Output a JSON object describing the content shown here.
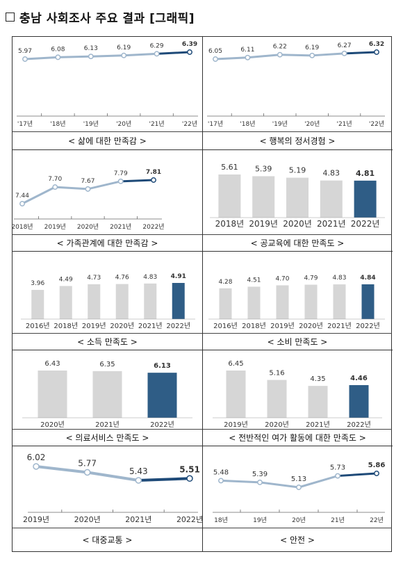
{
  "title": {
    "text": "충남 사회조사 주요 결과 [그래픽]",
    "checkbox_icon": "empty-square-icon"
  },
  "colors": {
    "light_line": "#9fb6cc",
    "dark_line": "#1e4a78",
    "bar_grey": "#d6d6d6",
    "bar_highlight": "#2f5d86",
    "marker_fill": "#ffffff"
  },
  "chart_data": [
    {
      "type": "line",
      "title": "< 삶에 대한 만족감 >",
      "categories": [
        "'17년",
        "'18년",
        "'19년",
        "'20년",
        "'21년",
        "'22년"
      ],
      "values": [
        5.97,
        6.08,
        6.13,
        6.19,
        6.29,
        6.39
      ],
      "value_labels": [
        "5.97",
        "6.08",
        "6.13",
        "6.19",
        "6.29",
        "6.39"
      ],
      "highlight": "last"
    },
    {
      "type": "line",
      "title": "< 행복의 정서경험 >",
      "categories": [
        "'17년",
        "'18년",
        "'19년",
        "'20년",
        "'21년",
        "'22년"
      ],
      "values": [
        6.05,
        6.11,
        6.22,
        6.19,
        6.27,
        6.32
      ],
      "value_labels": [
        "6.05",
        "6.11",
        "6.22",
        "6.19",
        "6.27",
        "6.32"
      ],
      "highlight": "last"
    },
    {
      "type": "line",
      "title": "< 가족관계에 대한 만족감 >",
      "categories": [
        "2018년",
        "2019년",
        "2020년",
        "2021년",
        "2022년"
      ],
      "values": [
        7.44,
        7.7,
        7.67,
        7.79,
        7.81
      ],
      "value_labels": [
        "7.44",
        "7.70",
        "7.67",
        "7.79",
        "7.81"
      ],
      "highlight": "last"
    },
    {
      "type": "bar",
      "title": "< 공교육에 대한 만족도 >",
      "categories": [
        "2018년",
        "2019년",
        "2020년",
        "2021년",
        "2022년"
      ],
      "values": [
        5.61,
        5.39,
        5.19,
        4.83,
        4.81
      ],
      "value_labels": [
        "5.61",
        "5.39",
        "5.19",
        "4.83",
        "4.81"
      ],
      "highlight": "last"
    },
    {
      "type": "bar",
      "title": "< 소득 만족도 >",
      "categories": [
        "2016년",
        "2018년",
        "2019년",
        "2020년",
        "2021년",
        "2022년"
      ],
      "values": [
        3.96,
        4.49,
        4.73,
        4.76,
        4.83,
        4.91
      ],
      "value_labels": [
        "3.96",
        "4.49",
        "4.73",
        "4.76",
        "4.83",
        "4.91"
      ],
      "highlight": "last"
    },
    {
      "type": "bar",
      "title": "< 소비 만족도 >",
      "categories": [
        "2016년",
        "2018년",
        "2019년",
        "2020년",
        "2021년",
        "2022년"
      ],
      "values": [
        4.28,
        4.51,
        4.7,
        4.79,
        4.83,
        4.84
      ],
      "value_labels": [
        "4.28",
        "4.51",
        "4.70",
        "4.79",
        "4.83",
        "4.84"
      ],
      "highlight": "last"
    },
    {
      "type": "bar",
      "title": "< 의료서비스 만족도 >",
      "categories": [
        "2020년",
        "2021년",
        "2022년"
      ],
      "values": [
        6.43,
        6.35,
        6.13
      ],
      "value_labels": [
        "6.43",
        "6.35",
        "6.13"
      ],
      "highlight": "last"
    },
    {
      "type": "bar",
      "title": "< 전반적인 여가 활동에 대한 만족도 >",
      "categories": [
        "2019년",
        "2020년",
        "2021년",
        "2022년"
      ],
      "values": [
        6.45,
        5.16,
        4.35,
        4.46
      ],
      "value_labels": [
        "6.45",
        "5.16",
        "4.35",
        "4.46"
      ],
      "highlight": "last"
    },
    {
      "type": "line",
      "title": "< 대중교통 >",
      "categories": [
        "2019년",
        "2020년",
        "2021년",
        "2022년"
      ],
      "values": [
        6.02,
        5.77,
        5.43,
        5.51
      ],
      "value_labels": [
        "6.02",
        "5.77",
        "5.43",
        "5.51"
      ],
      "highlight": "last"
    },
    {
      "type": "line",
      "title": "< 안전 >",
      "categories": [
        "18년",
        "19년",
        "20년",
        "21년",
        "22년"
      ],
      "values": [
        5.48,
        5.39,
        5.13,
        5.73,
        5.86
      ],
      "value_labels": [
        "5.48",
        "5.39",
        "5.13",
        "5.73",
        "5.86"
      ],
      "highlight": "last"
    }
  ]
}
